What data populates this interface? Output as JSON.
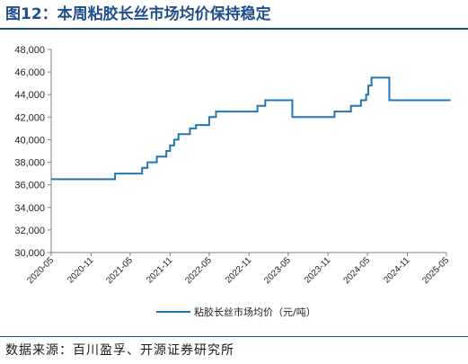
{
  "figure": {
    "title": "图12：本周粘胶长丝市场均价保持稳定",
    "source": "数据来源：百川盈孚、开源证券研究所"
  },
  "colors": {
    "title": "#1f4e8c",
    "series": "#1f77b4",
    "axis": "#808080"
  },
  "chart_data": {
    "type": "line",
    "title": "",
    "xlabel": "",
    "ylabel": "",
    "step": true,
    "grid": false,
    "legend_position": "bottom",
    "xlim": [
      "2020-05",
      "2025-05"
    ],
    "ylim": [
      30000,
      48000
    ],
    "y_ticks": [
      30000,
      32000,
      34000,
      36000,
      38000,
      40000,
      42000,
      44000,
      46000,
      48000
    ],
    "y_tick_labels": [
      "30,000",
      "32,000",
      "34,000",
      "36,000",
      "38,000",
      "40,000",
      "42,000",
      "44,000",
      "46,000",
      "48,000"
    ],
    "x_ticks": [
      "2020-05",
      "2020-11",
      "2021-05",
      "2021-11",
      "2022-05",
      "2022-11",
      "2023-05",
      "2023-11",
      "2024-05",
      "2024-11",
      "2025-05"
    ],
    "series": [
      {
        "name": "粘胶长丝市场均价（元/吨）",
        "points": [
          [
            "2020-05-01",
            36500
          ],
          [
            "2021-02-20",
            37000
          ],
          [
            "2021-06-25",
            37500
          ],
          [
            "2021-07-20",
            38000
          ],
          [
            "2021-09-01",
            38500
          ],
          [
            "2021-10-15",
            39000
          ],
          [
            "2021-11-01",
            39500
          ],
          [
            "2021-11-20",
            40000
          ],
          [
            "2021-12-10",
            40500
          ],
          [
            "2022-02-01",
            41000
          ],
          [
            "2022-03-01",
            41300
          ],
          [
            "2022-05-01",
            42000
          ],
          [
            "2022-06-01",
            42500
          ],
          [
            "2022-12-10",
            43000
          ],
          [
            "2023-01-15",
            43500
          ],
          [
            "2023-05-20",
            42000
          ],
          [
            "2023-12-01",
            42500
          ],
          [
            "2024-02-15",
            43000
          ],
          [
            "2024-04-01",
            43500
          ],
          [
            "2024-04-25",
            44000
          ],
          [
            "2024-05-05",
            44800
          ],
          [
            "2024-05-20",
            45500
          ],
          [
            "2024-08-10",
            43500
          ],
          [
            "2025-05-20",
            43500
          ]
        ]
      }
    ]
  }
}
